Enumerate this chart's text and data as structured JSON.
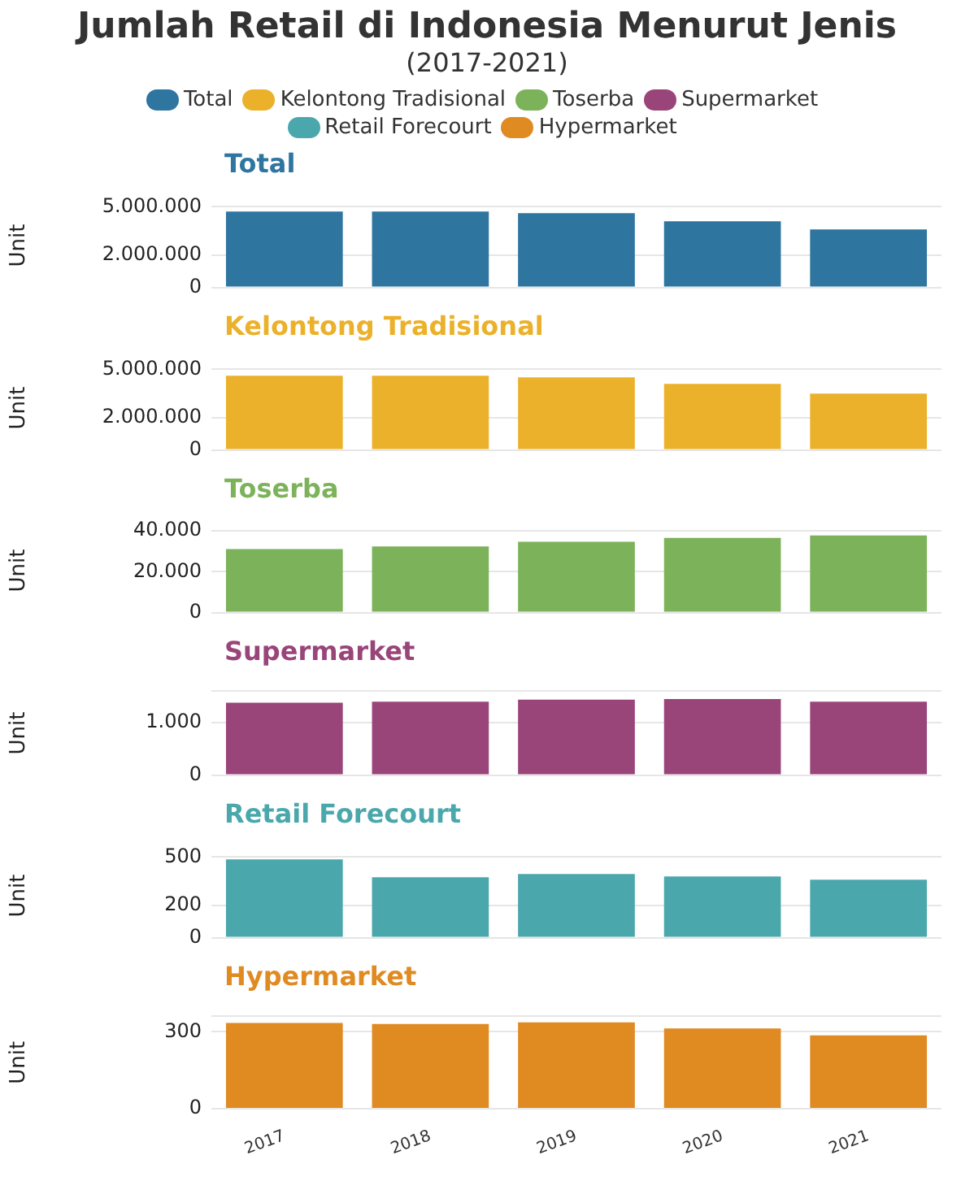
{
  "chart_data": [
    {
      "type": "other",
      "title": "Jumlah Retail di Indonesia Menurut Jenis",
      "subtitle": "(2017-2021)"
    },
    {
      "type": "bar",
      "title": "Total",
      "ylabel": "Unit",
      "categories": [
        "2017",
        "2018",
        "2019",
        "2020",
        "2021"
      ],
      "legend": "top",
      "grid": "y",
      "tick_labels": "y",
      "series": [
        {
          "name": "Total",
          "color": "#2e75a0",
          "values": [
            4700000,
            4700000,
            4600000,
            4100000,
            3600000
          ]
        }
      ],
      "ylim": [
        0,
        5200000
      ],
      "yticks": [
        {
          "value": 0,
          "label": "0"
        },
        {
          "value": 2000000,
          "label": "2.000.000"
        },
        {
          "value": 5000000,
          "label": "5.000.000"
        }
      ]
    },
    {
      "type": "bar",
      "title": "Kelontong Tradisional",
      "ylabel": "Unit",
      "categories": [
        "2017",
        "2018",
        "2019",
        "2020",
        "2021"
      ],
      "legend": "top",
      "grid": "y",
      "tick_labels": "y",
      "series": [
        {
          "name": "Kelontong Tradisional",
          "color": "#ebb12a",
          "values": [
            4600000,
            4600000,
            4500000,
            4100000,
            3500000
          ]
        }
      ],
      "ylim": [
        0,
        5200000
      ],
      "yticks": [
        {
          "value": 0,
          "label": "0"
        },
        {
          "value": 2000000,
          "label": "2.000.000"
        },
        {
          "value": 5000000,
          "label": "5.000.000"
        }
      ]
    },
    {
      "type": "bar",
      "title": "Toserba",
      "ylabel": "Unit",
      "categories": [
        "2017",
        "2018",
        "2019",
        "2020",
        "2021"
      ],
      "legend": "top",
      "grid": "y",
      "tick_labels": "y",
      "series": [
        {
          "name": "Toserba",
          "color": "#7cb35a",
          "values": [
            31000,
            32300,
            34600,
            36500,
            37700
          ]
        }
      ],
      "ylim": [
        0,
        41000
      ],
      "yticks": [
        {
          "value": 0,
          "label": "0"
        },
        {
          "value": 20000,
          "label": "20.000"
        },
        {
          "value": 40000,
          "label": "40.000"
        }
      ]
    },
    {
      "type": "bar",
      "title": "Supermarket",
      "ylabel": "Unit",
      "categories": [
        "2017",
        "2018",
        "2019",
        "2020",
        "2021"
      ],
      "legend": "top",
      "grid": "y",
      "tick_labels": "y",
      "series": [
        {
          "name": "Supermarket",
          "color": "#99457a",
          "values": [
            1380,
            1400,
            1440,
            1450,
            1400
          ]
        }
      ],
      "ylim": [
        0,
        1600
      ],
      "yticks": [
        {
          "value": 0,
          "label": "0"
        },
        {
          "value": 1000,
          "label": "1.000"
        },
        {
          "value": 1600,
          "label": null
        }
      ]
    },
    {
      "type": "bar",
      "title": "Retail Forecourt",
      "ylabel": "Unit",
      "categories": [
        "2017",
        "2018",
        "2019",
        "2020",
        "2021"
      ],
      "legend": "top",
      "grid": "y",
      "tick_labels": "y",
      "series": [
        {
          "name": "Retail Forecourt",
          "color": "#4aa8ac",
          "values": [
            485,
            375,
            395,
            380,
            360
          ]
        }
      ],
      "ylim": [
        0,
        520
      ],
      "yticks": [
        0,
        200,
        500
      ]
    },
    {
      "type": "bar",
      "title": "Hypermarket",
      "ylabel": "Unit",
      "categories": [
        "2017",
        "2018",
        "2019",
        "2020",
        "2021"
      ],
      "legend": "top",
      "grid": "y",
      "series": [
        {
          "name": "Hypermarket",
          "color": "#e08a22",
          "values": [
            334,
            330,
            337,
            313,
            286
          ]
        }
      ],
      "ylim": [
        0,
        360
      ],
      "yticks": [
        0,
        300,
        {
          "value": 360,
          "label": null
        }
      ]
    }
  ]
}
